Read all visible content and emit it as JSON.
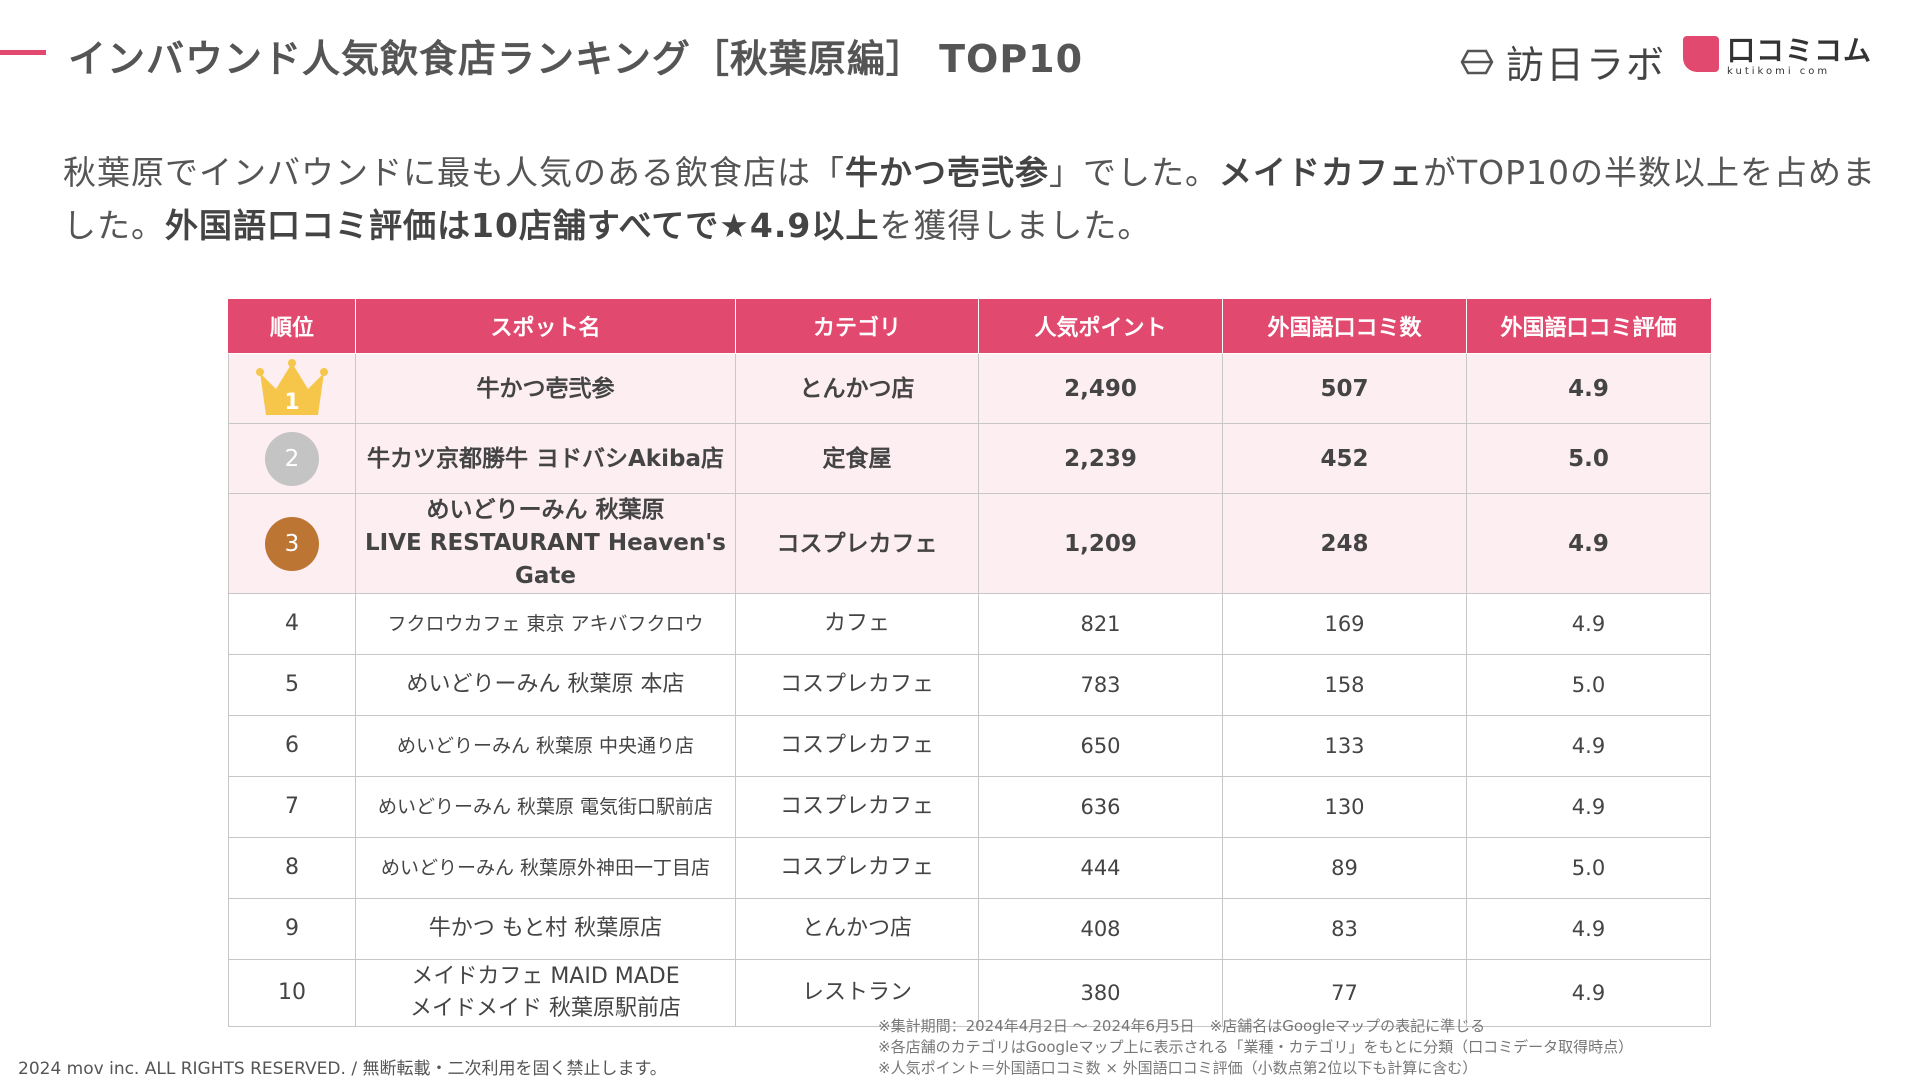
{
  "header": {
    "title": "インバウンド人気飲食店ランキング［秋葉原編］ TOP10",
    "logo_houjin": "訪日ラボ",
    "logo_kuchikomi": "口コミコム",
    "logo_kuchikomi_sub": "kutikomi com"
  },
  "lead": {
    "t1": "秋葉原でインバウンドに最も人気のある飲食店は「",
    "b1": "牛かつ壱弐参",
    "t2": "」でした。",
    "b2": "メイドカフェ",
    "t3": "がTOP10の半数以上を占めました。",
    "b3": "外国語口コミ評価は10店舗すべてで★4.9以上",
    "t4": "を獲得しました。"
  },
  "table": {
    "headers": [
      "順位",
      "スポット名",
      "カテゴリ",
      "人気ポイント",
      "外国語口コミ数",
      "外国語口コミ評価"
    ],
    "rows": [
      {
        "rank": "1",
        "name": "牛かつ壱弐参",
        "name2": "",
        "category": "とんかつ店",
        "points": "2,490",
        "reviews": "507",
        "rating": "4.9"
      },
      {
        "rank": "2",
        "name": "牛カツ京都勝牛 ヨドバシAkiba店",
        "name2": "",
        "category": "定食屋",
        "points": "2,239",
        "reviews": "452",
        "rating": "5.0"
      },
      {
        "rank": "3",
        "name": "めいどりーみん 秋葉原",
        "name2": "LIVE RESTAURANT Heaven's Gate",
        "category": "コスプレカフェ",
        "points": "1,209",
        "reviews": "248",
        "rating": "4.9"
      },
      {
        "rank": "4",
        "name": "フクロウカフェ 東京 アキバフクロウ",
        "name2": "",
        "category": "カフェ",
        "points": "821",
        "reviews": "169",
        "rating": "4.9"
      },
      {
        "rank": "5",
        "name": "めいどりーみん 秋葉原 本店",
        "name2": "",
        "category": "コスプレカフェ",
        "points": "783",
        "reviews": "158",
        "rating": "5.0"
      },
      {
        "rank": "6",
        "name": "めいどりーみん 秋葉原 中央通り店",
        "name2": "",
        "category": "コスプレカフェ",
        "points": "650",
        "reviews": "133",
        "rating": "4.9"
      },
      {
        "rank": "7",
        "name": "めいどりーみん 秋葉原 電気街口駅前店",
        "name2": "",
        "category": "コスプレカフェ",
        "points": "636",
        "reviews": "130",
        "rating": "4.9"
      },
      {
        "rank": "8",
        "name": "めいどりーみん 秋葉原外神田一丁目店",
        "name2": "",
        "category": "コスプレカフェ",
        "points": "444",
        "reviews": "89",
        "rating": "5.0"
      },
      {
        "rank": "9",
        "name": "牛かつ もと村 秋葉原店",
        "name2": "",
        "category": "とんかつ店",
        "points": "408",
        "reviews": "83",
        "rating": "4.9"
      },
      {
        "rank": "10",
        "name": "メイドカフェ MAID MADE",
        "name2": "メイドメイド 秋葉原駅前店",
        "category": "レストラン",
        "points": "380",
        "reviews": "77",
        "rating": "4.9"
      }
    ]
  },
  "notes": [
    "※集計期間：2024年4月2日 〜 2024年6月5日　※店舗名はGoogleマップの表記に準じる",
    "※各店舗のカテゴリはGoogleマップ上に表示される「業種・カテゴリ」をもとに分類（口コミデータ取得時点）",
    "※人気ポイント＝外国語口コミ数 × 外国語口コミ評価（小数点第2位以下も計算に含む）"
  ],
  "copyright": "2024 mov inc. ALL RIGHTS RESERVED. / 無断転載・二次利用を固く禁止します。",
  "colors": {
    "accent": "#e2496f",
    "top_row_bg": "#fdeef2",
    "crown": "#f6c64a",
    "silver": "#c4c4c4",
    "bronze": "#bd7533"
  }
}
